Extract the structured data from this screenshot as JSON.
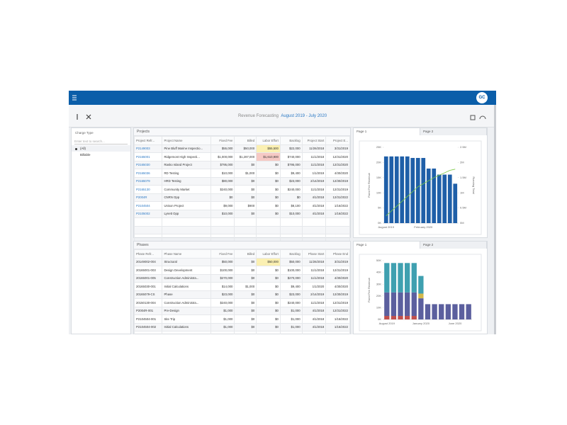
{
  "header": {
    "avatar": "GC"
  },
  "toolbar": {
    "title": "Revenue Forecasting",
    "period": "August 2019 - July 2020"
  },
  "filter": {
    "title": "Charge Type",
    "search_placeholder": "Enter text to search...",
    "items": [
      "(All)",
      "Billable"
    ]
  },
  "projects": {
    "title": "Projects",
    "columns": [
      "Project Refr...",
      "Project Name",
      "Fixed Fee",
      "Billed",
      "Labor Effort",
      "Backlog",
      "Project Start",
      "Project E..."
    ],
    "rows": [
      [
        "P2149003",
        "Pine Bluff Marine Inspectio...",
        "$55,000",
        "$50,000",
        "$55,500",
        "$22,000",
        "11/26/2018",
        "3/31/2019"
      ],
      [
        "P2165001",
        "Ridgemont High Inspecti...",
        "$1,000,000",
        "$1,287,000",
        "$1,610,900",
        "$740,000",
        "11/1/2018",
        "12/31/2020"
      ],
      [
        "P2165030",
        "Rasko Island Project",
        "$795,000",
        "$0",
        "$0",
        "$795,000",
        "11/1/2018",
        "12/31/2020"
      ],
      [
        "P2165036",
        "RD Testing",
        "$10,000",
        "$1,000",
        "$0",
        "$9,400",
        "1/1/2019",
        "4/30/2020"
      ],
      [
        "P2165079",
        "HRD Testing",
        "$80,000",
        "$0",
        "$0",
        "$23,000",
        "2/14/2019",
        "12/30/2019"
      ],
      [
        "P2165130",
        "Community Market",
        "$240,000",
        "$0",
        "$0",
        "$240,000",
        "11/1/2018",
        "12/31/2019"
      ],
      [
        "P2004R",
        "CNRN Opp",
        "$0",
        "$0",
        "$0",
        "$0",
        "4/1/2018",
        "12/31/2022"
      ],
      [
        "P2104504",
        "Unison Project",
        "$9,000",
        "$900",
        "$0",
        "$8,100",
        "4/1/2018",
        "1/16/2022"
      ],
      [
        "P2105002",
        "Lynett Opp",
        "$10,000",
        "$0",
        "$0",
        "$10,000",
        "4/1/2018",
        "1/16/2022"
      ]
    ]
  },
  "phases": {
    "title": "Phases",
    "columns": [
      "Phase Refr...",
      "Phase Name",
      "Fixed Fee",
      "Billed",
      "Labor Effort",
      "Backlog",
      "Phase Start",
      "Phase End"
    ],
    "rows": [
      [
        "20149002-004",
        "Structural",
        "$50,000",
        "$0",
        "$50,000",
        "$50,000",
        "11/26/2018",
        "3/31/2019"
      ],
      [
        "20165001-003",
        "Design Development",
        "$100,000",
        "$0",
        "$0",
        "$100,000",
        "11/1/2018",
        "12/31/2019"
      ],
      [
        "20165001-005",
        "Construction Administra...",
        "$270,000",
        "$0",
        "$0",
        "$270,000",
        "11/1/2018",
        "4/30/2020"
      ],
      [
        "20165030-001",
        "Initial Calculations",
        "$14,000",
        "$1,000",
        "$0",
        "$9,400",
        "1/1/2020",
        "4/30/2020"
      ],
      [
        "20165079-CS",
        "Phase",
        "$23,000",
        "$0",
        "$0",
        "$23,000",
        "2/14/2019",
        "12/30/2019"
      ],
      [
        "20150130-004",
        "Construction Administra...",
        "$240,000",
        "$0",
        "$0",
        "$240,000",
        "11/1/2018",
        "12/31/2019"
      ],
      [
        "P2004R-001",
        "Pre-Design",
        "$1,000",
        "$0",
        "$0",
        "$1,000",
        "4/1/2018",
        "12/31/2022"
      ],
      [
        "P2104504-001",
        "Site Trip",
        "$1,000",
        "$0",
        "$0",
        "$1,000",
        "4/1/2018",
        "1/16/2022"
      ],
      [
        "P2104504-002",
        "Initial Calculations",
        "$1,000",
        "$0",
        "$0",
        "$1,000",
        "4/1/2018",
        "1/16/2022"
      ]
    ]
  },
  "charts": [
    {
      "type": "bar_line",
      "tabs": [
        "Page 1",
        "Page 2"
      ],
      "y_label": "Fixed Fee Revenue",
      "y2_label": "Running Total",
      "categories": [
        "August 2019",
        null,
        null,
        null,
        null,
        null,
        null,
        "February 2020",
        null,
        null,
        null,
        null,
        null,
        null
      ],
      "values": [
        22000,
        22000,
        22000,
        22000,
        22000,
        21500,
        21500,
        21500,
        18000,
        18000,
        16000,
        16000,
        16000,
        13000
      ],
      "color": "#1f5fa8",
      "line": {
        "values": [
          240000,
          400000,
          560000,
          720000,
          880000,
          1040000,
          1200000,
          1300000,
          1400000,
          1500000,
          1580000,
          1660000,
          1740000,
          1780000
        ],
        "color": "#7ac943"
      },
      "ylim": [
        0,
        25000
      ],
      "yticks": [
        {
          "value": 0,
          "label": "0K"
        },
        {
          "value": 5000,
          "label": "5K"
        },
        {
          "value": 10000,
          "label": "10K"
        },
        {
          "value": 15000,
          "label": "15K"
        },
        {
          "value": 20000,
          "label": "20K"
        },
        {
          "value": 25000,
          "label": "25K"
        }
      ],
      "y2lim": [
        0,
        2500000
      ],
      "y2ticks": [
        {
          "value": 0,
          "label": "0M"
        },
        {
          "value": 500000,
          "label": "0.5M"
        },
        {
          "value": 1000000,
          "label": "1M"
        },
        {
          "value": 1500000,
          "label": "1.5M"
        },
        {
          "value": 2000000,
          "label": "2M"
        },
        {
          "value": 2500000,
          "label": "2.5M"
        }
      ]
    },
    {
      "type": "stacked_bar",
      "tabs": [
        "Page 1",
        "Page 2"
      ],
      "y_label": "Fixed Fee Revenue",
      "categories": [
        "August 2019",
        null,
        null,
        null,
        null,
        "January 2020",
        null,
        null,
        null,
        null,
        "June 2020",
        null,
        null
      ],
      "series": [
        {
          "color": "#c0504d",
          "values": [
            3000,
            3000,
            3000,
            3000,
            3000,
            0,
            0,
            0,
            0,
            0,
            0,
            0,
            0
          ]
        },
        {
          "color": "#5b5f9e",
          "values": [
            20000,
            20000,
            20000,
            20000,
            20000,
            18000,
            13000,
            13000,
            13000,
            13000,
            13000,
            13000,
            13000
          ]
        },
        {
          "color": "#d4b84a",
          "values": [
            0,
            0,
            0,
            0,
            0,
            4000,
            0,
            0,
            0,
            0,
            0,
            0,
            0
          ]
        },
        {
          "color": "#3fa0b0",
          "values": [
            25000,
            25000,
            25000,
            25000,
            25000,
            15000,
            0,
            0,
            0,
            0,
            0,
            0,
            0
          ]
        }
      ],
      "ylim": [
        0,
        50000
      ],
      "yticks": [
        {
          "value": 0,
          "label": "0K"
        },
        {
          "value": 10000,
          "label": "10K"
        },
        {
          "value": 20000,
          "label": "20K"
        },
        {
          "value": 30000,
          "label": "30K"
        },
        {
          "value": 40000,
          "label": "40K"
        },
        {
          "value": 50000,
          "label": "50K"
        }
      ]
    }
  ]
}
